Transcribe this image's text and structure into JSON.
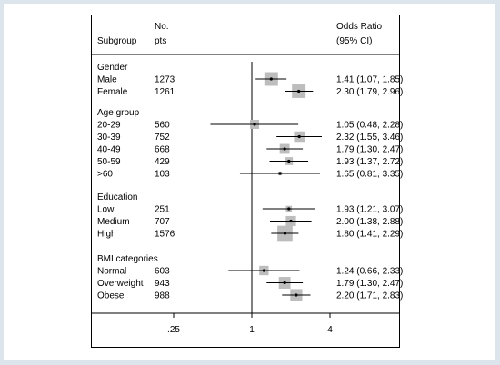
{
  "chart_data": {
    "type": "forest",
    "title": "",
    "headers": {
      "subgroup": "Subgroup",
      "pts_line1": "No.",
      "pts_line2": "pts",
      "or_line1": "Odds Ratio",
      "or_line2": "(95% CI)"
    },
    "x_scale": "log",
    "xlim": [
      0.125,
      8
    ],
    "reference_line": 1,
    "x_ticks": [
      {
        "value": 0.25,
        "label": ".25"
      },
      {
        "value": 1,
        "label": "1"
      },
      {
        "value": 4,
        "label": "4"
      }
    ],
    "groups": [
      {
        "name": "Gender",
        "rows": [
          {
            "label": "Male",
            "pts": "1273",
            "or": 1.41,
            "lo": 1.07,
            "hi": 1.85,
            "text": "1.41 (1.07, 1.85)"
          },
          {
            "label": "Female",
            "pts": "1261",
            "or": 2.3,
            "lo": 1.79,
            "hi": 2.96,
            "text": "2.30 (1.79, 2.96)"
          }
        ]
      },
      {
        "name": "Age group",
        "rows": [
          {
            "label": "20-29",
            "pts": "560",
            "or": 1.05,
            "lo": 0.48,
            "hi": 2.28,
            "text": "1.05 (0.48, 2.28)"
          },
          {
            "label": "30-39",
            "pts": "752",
            "or": 2.32,
            "lo": 1.55,
            "hi": 3.46,
            "text": "2.32 (1.55, 3.46)"
          },
          {
            "label": "40-49",
            "pts": "668",
            "or": 1.79,
            "lo": 1.3,
            "hi": 2.47,
            "text": "1.79 (1.30, 2.47)"
          },
          {
            "label": "50-59",
            "pts": "429",
            "or": 1.93,
            "lo": 1.37,
            "hi": 2.72,
            "text": "1.93 (1.37, 2.72)"
          },
          {
            "label": ">60",
            "pts": "103",
            "or": 1.65,
            "lo": 0.81,
            "hi": 3.35,
            "text": "1.65 (0.81, 3.35)"
          }
        ]
      },
      {
        "name": "Education",
        "rows": [
          {
            "label": "Low",
            "pts": "251",
            "or": 1.93,
            "lo": 1.21,
            "hi": 3.07,
            "text": "1.93 (1.21, 3.07)"
          },
          {
            "label": "Medium",
            "pts": "707",
            "or": 2.0,
            "lo": 1.38,
            "hi": 2.88,
            "text": "2.00 (1.38, 2.88)"
          },
          {
            "label": "High",
            "pts": "1576",
            "or": 1.8,
            "lo": 1.41,
            "hi": 2.29,
            "text": "1.80 (1.41, 2.29)"
          }
        ]
      },
      {
        "name": "BMI categories",
        "rows": [
          {
            "label": "Normal",
            "pts": "603",
            "or": 1.24,
            "lo": 0.66,
            "hi": 2.33,
            "text": "1.24 (0.66, 2.33)"
          },
          {
            "label": "Overweight",
            "pts": "943",
            "or": 1.79,
            "lo": 1.3,
            "hi": 2.47,
            "text": "1.79 (1.30, 2.47)"
          },
          {
            "label": "Obese",
            "pts": "988",
            "or": 2.2,
            "lo": 1.71,
            "hi": 2.83,
            "text": "2.20 (1.71, 2.83)"
          }
        ]
      }
    ],
    "colors": {
      "box": "#bdbdbd",
      "line": "#000000",
      "background": "#dce4ec"
    }
  }
}
